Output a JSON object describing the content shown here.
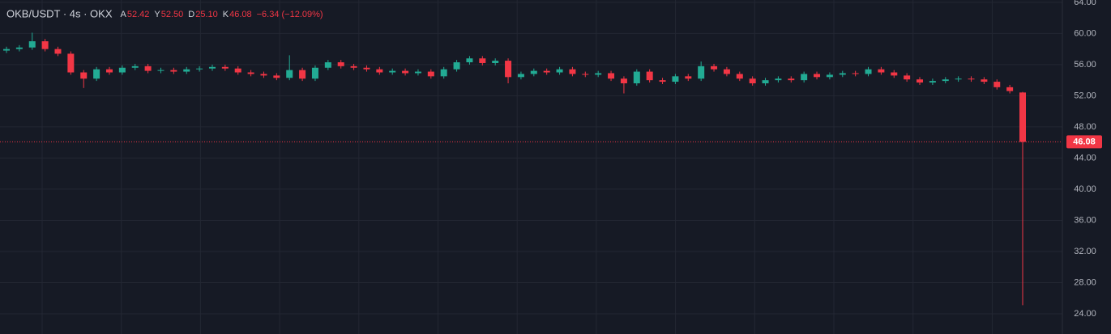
{
  "chart_data": {
    "type": "candlestick",
    "symbol": "OKB/USDT · 4s · OKX",
    "ohlc_legend": [
      {
        "key": "A",
        "value": "52.42"
      },
      {
        "key": "Y",
        "value": "52.50"
      },
      {
        "key": "D",
        "value": "25.10"
      },
      {
        "key": "K",
        "value": "46.08"
      }
    ],
    "change": "−6.34 (−12.09%)",
    "up_color": "#22ab94",
    "down_color": "#f23645",
    "grid": true,
    "open": [
      57.8,
      58.0,
      58.2,
      59.0,
      58.0,
      57.4,
      55.0,
      54.2,
      55.4,
      55.0,
      55.6,
      55.8,
      55.2,
      55.3,
      55.1,
      55.4,
      55.5,
      55.7,
      55.5,
      55.0,
      54.8,
      54.6,
      54.3,
      55.3,
      54.2,
      55.6,
      56.3,
      55.8,
      55.6,
      55.4,
      55.0,
      55.2,
      54.9,
      55.1,
      54.5,
      55.4,
      56.3,
      56.8,
      56.2,
      56.5,
      54.4,
      54.8,
      55.2,
      55.0,
      55.4,
      54.8,
      54.7,
      54.9,
      54.2,
      53.6,
      55.1,
      54.0,
      53.8,
      54.5,
      54.2,
      55.8,
      55.4,
      54.8,
      54.2,
      53.6,
      54.0,
      54.2,
      54.0,
      54.8,
      54.4,
      54.7,
      54.9,
      54.8,
      55.4,
      55.0,
      54.6,
      54.1,
      53.7,
      53.9,
      54.1,
      54.2,
      54.1,
      53.8,
      53.1,
      52.42
    ],
    "high": [
      58.3,
      58.5,
      60.1,
      59.3,
      58.3,
      57.7,
      55.3,
      55.7,
      55.7,
      55.9,
      56.1,
      56.1,
      55.6,
      55.6,
      55.7,
      55.8,
      56.0,
      56.0,
      55.8,
      55.3,
      55.1,
      54.9,
      57.2,
      55.6,
      55.9,
      56.6,
      56.6,
      56.1,
      55.9,
      55.7,
      55.5,
      55.5,
      55.4,
      55.4,
      55.7,
      56.6,
      57.1,
      57.1,
      56.8,
      56.8,
      55.1,
      55.5,
      55.5,
      55.7,
      55.7,
      55.1,
      55.2,
      55.2,
      54.5,
      55.4,
      55.4,
      54.3,
      54.8,
      54.8,
      56.4,
      56.1,
      55.7,
      55.1,
      54.5,
      54.3,
      54.5,
      54.5,
      55.1,
      55.1,
      55.0,
      55.2,
      55.2,
      55.7,
      55.7,
      55.3,
      54.9,
      54.4,
      54.2,
      54.4,
      54.5,
      54.5,
      54.4,
      54.1,
      53.4,
      52.5
    ],
    "low": [
      57.5,
      57.7,
      57.9,
      57.7,
      57.1,
      54.7,
      53.0,
      53.9,
      54.7,
      54.7,
      55.3,
      54.9,
      54.9,
      54.8,
      54.8,
      55.1,
      55.2,
      55.2,
      54.7,
      54.5,
      54.3,
      54.0,
      54.0,
      53.9,
      53.9,
      55.3,
      55.5,
      55.3,
      55.1,
      54.7,
      54.7,
      54.6,
      54.6,
      54.2,
      54.2,
      55.1,
      56.0,
      55.9,
      55.9,
      53.6,
      54.1,
      54.5,
      54.7,
      54.7,
      54.5,
      54.4,
      54.4,
      53.9,
      52.3,
      53.3,
      53.7,
      53.5,
      53.5,
      53.9,
      53.9,
      55.1,
      54.5,
      53.9,
      53.3,
      53.3,
      53.7,
      53.7,
      53.7,
      54.1,
      54.1,
      54.4,
      54.5,
      54.5,
      54.7,
      54.3,
      53.8,
      53.4,
      53.4,
      53.6,
      53.8,
      53.8,
      53.5,
      52.8,
      52.3,
      25.1
    ],
    "close": [
      58.0,
      58.2,
      59.0,
      58.0,
      57.4,
      55.0,
      54.2,
      55.4,
      55.0,
      55.6,
      55.8,
      55.2,
      55.3,
      55.1,
      55.4,
      55.5,
      55.7,
      55.5,
      55.0,
      54.8,
      54.6,
      54.3,
      55.3,
      54.2,
      55.6,
      56.3,
      55.8,
      55.6,
      55.4,
      55.0,
      55.2,
      54.9,
      55.1,
      54.5,
      55.4,
      56.3,
      56.8,
      56.2,
      56.5,
      54.4,
      54.8,
      55.2,
      55.0,
      55.4,
      54.8,
      54.7,
      54.9,
      54.2,
      53.6,
      55.1,
      54.0,
      53.8,
      54.5,
      54.2,
      55.8,
      55.4,
      54.8,
      54.2,
      53.6,
      54.0,
      54.2,
      54.0,
      54.8,
      54.4,
      54.7,
      54.9,
      54.8,
      55.4,
      55.0,
      54.6,
      54.1,
      53.7,
      53.9,
      54.1,
      54.2,
      54.1,
      53.8,
      53.1,
      52.6,
      46.08
    ],
    "ylim": [
      21.4,
      64.3
    ],
    "yticks": [
      {
        "value": 24,
        "label": "24.00"
      },
      {
        "value": 28,
        "label": "28.00"
      },
      {
        "value": 32,
        "label": "32.00"
      },
      {
        "value": 36,
        "label": "36.00"
      },
      {
        "value": 40,
        "label": "40.00"
      },
      {
        "value": 44,
        "label": "44.00"
      },
      {
        "value": 48,
        "label": "48.00"
      },
      {
        "value": 52,
        "label": "52.00"
      },
      {
        "value": 56,
        "label": "56.00"
      },
      {
        "value": 60,
        "label": "60.00"
      },
      {
        "value": 64,
        "label": "64.00"
      }
    ],
    "last_price": {
      "value": 46.08,
      "label": "46.08"
    }
  }
}
